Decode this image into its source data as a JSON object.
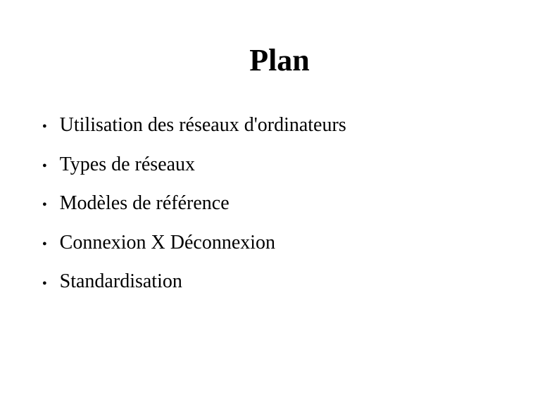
{
  "slide": {
    "title": "Plan",
    "title_fontsize": 44,
    "title_fontweight": "bold",
    "background_color": "#ffffff",
    "text_color": "#000000",
    "font_family": "Times New Roman",
    "bullets": [
      {
        "text": "Utilisation des réseaux d'ordinateurs"
      },
      {
        "text": "Types de réseaux"
      },
      {
        "text": "Modèles de référence"
      },
      {
        "text": "Connexion X Déconnexion"
      },
      {
        "text": "Standardisation"
      }
    ],
    "bullet_marker": "●",
    "bullet_fontsize": 28
  }
}
